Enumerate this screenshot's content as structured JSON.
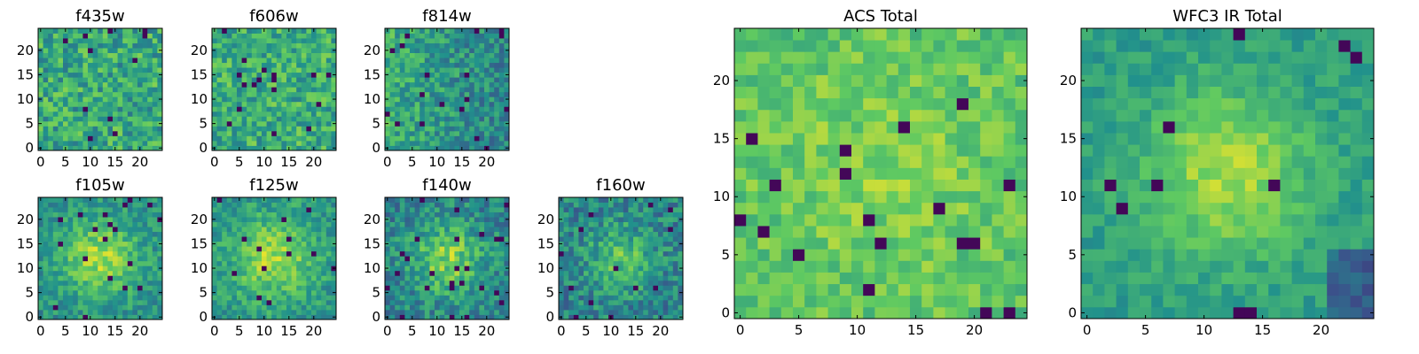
{
  "figure": {
    "colormap": "viridis",
    "colormap_stops": [
      "#440154",
      "#3b528b",
      "#21918c",
      "#5ec962",
      "#fde725"
    ],
    "background": "#ffffff",
    "axes_color": "#000000"
  },
  "chart_data": [
    {
      "type": "heatmap",
      "title": "f435w",
      "grid_size": [
        25,
        25
      ],
      "xlim": [
        -0.5,
        24.5
      ],
      "ylim": [
        -0.5,
        24.5
      ],
      "xticks": [
        0,
        5,
        10,
        15,
        20
      ],
      "yticks": [
        0,
        5,
        10,
        15,
        20
      ],
      "xlabel": "",
      "ylabel": "",
      "pattern": "uniform noise",
      "seed": 11
    },
    {
      "type": "heatmap",
      "title": "f606w",
      "grid_size": [
        25,
        25
      ],
      "xlim": [
        -0.5,
        24.5
      ],
      "ylim": [
        -0.5,
        24.5
      ],
      "xticks": [
        0,
        5,
        10,
        15,
        20
      ],
      "yticks": [
        0,
        5,
        10,
        15,
        20
      ],
      "xlabel": "",
      "ylabel": "",
      "pattern": "uniform noise",
      "seed": 23
    },
    {
      "type": "heatmap",
      "title": "f814w",
      "grid_size": [
        25,
        25
      ],
      "xlim": [
        -0.5,
        24.5
      ],
      "ylim": [
        -0.5,
        24.5
      ],
      "xticks": [
        0,
        5,
        10,
        15,
        20
      ],
      "yticks": [
        0,
        5,
        10,
        15,
        20
      ],
      "xlabel": "",
      "ylabel": "",
      "pattern": "noise, darker toward right edge",
      "seed": 37
    },
    {
      "type": "heatmap",
      "title": "f105w",
      "grid_size": [
        25,
        25
      ],
      "xlim": [
        -0.5,
        24.5
      ],
      "ylim": [
        -0.5,
        24.5
      ],
      "xticks": [
        0,
        5,
        10,
        15,
        20
      ],
      "yticks": [
        0,
        5,
        10,
        15,
        20
      ],
      "xlabel": "",
      "ylabel": "",
      "pattern": "bright central blob",
      "seed": 41
    },
    {
      "type": "heatmap",
      "title": "f125w",
      "grid_size": [
        25,
        25
      ],
      "xlim": [
        -0.5,
        24.5
      ],
      "ylim": [
        -0.5,
        24.5
      ],
      "xticks": [
        0,
        5,
        10,
        15,
        20
      ],
      "yticks": [
        0,
        5,
        10,
        15,
        20
      ],
      "xlabel": "",
      "ylabel": "",
      "pattern": "bright central blob",
      "seed": 53
    },
    {
      "type": "heatmap",
      "title": "f140w",
      "grid_size": [
        25,
        25
      ],
      "xlim": [
        -0.5,
        24.5
      ],
      "ylim": [
        -0.5,
        24.5
      ],
      "xticks": [
        0,
        5,
        10,
        15,
        20
      ],
      "yticks": [
        0,
        5,
        10,
        15,
        20
      ],
      "xlabel": "",
      "ylabel": "",
      "pattern": "bright central blob",
      "seed": 67
    },
    {
      "type": "heatmap",
      "title": "f160w",
      "grid_size": [
        25,
        25
      ],
      "xlim": [
        -0.5,
        24.5
      ],
      "ylim": [
        -0.5,
        24.5
      ],
      "xticks": [
        0,
        5,
        10,
        15,
        20
      ],
      "yticks": [
        0,
        5,
        10,
        15,
        20
      ],
      "xlabel": "",
      "ylabel": "",
      "pattern": "faint central blob",
      "seed": 79
    },
    {
      "type": "heatmap",
      "title": "ACS Total",
      "grid_size": [
        25,
        25
      ],
      "xlim": [
        -0.5,
        24.5
      ],
      "ylim": [
        -0.5,
        24.5
      ],
      "xticks": [
        0,
        5,
        10,
        15,
        20
      ],
      "yticks": [
        0,
        5,
        10,
        15,
        20
      ],
      "xlabel": "",
      "ylabel": "",
      "pattern": "bright noise",
      "seed": 83
    },
    {
      "type": "heatmap",
      "title": "WFC3 IR Total",
      "grid_size": [
        25,
        25
      ],
      "xlim": [
        -0.5,
        24.5
      ],
      "ylim": [
        -0.5,
        24.5
      ],
      "xticks": [
        0,
        5,
        10,
        15,
        20
      ],
      "yticks": [
        0,
        5,
        10,
        15,
        20
      ],
      "xlabel": "",
      "ylabel": "",
      "pattern": "bright central blob, dark lower right",
      "seed": 97
    }
  ]
}
